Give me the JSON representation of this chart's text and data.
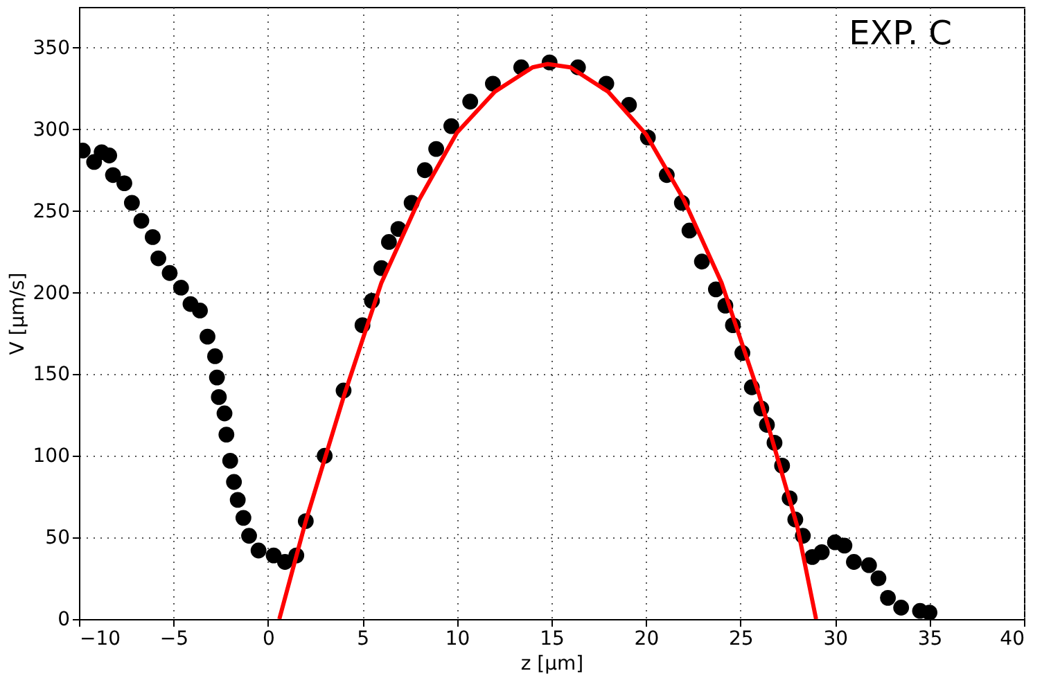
{
  "chart_data": {
    "type": "scatter",
    "xlabel": "z [μm]",
    "ylabel": "V [μm/s]",
    "annotations": [
      "EXP. C"
    ],
    "xlim": [
      -10,
      40
    ],
    "ylim": [
      0,
      375
    ],
    "xticks": [
      -10,
      -5,
      0,
      5,
      10,
      15,
      20,
      25,
      30,
      35,
      40
    ],
    "yticks": [
      0,
      50,
      100,
      150,
      200,
      250,
      300,
      350
    ],
    "grid": true,
    "series": [
      {
        "color": "#000000",
        "marker": "circle",
        "x": [
          -9.8,
          -9.2,
          -8.8,
          -8.4,
          -8.2,
          -7.6,
          -7.2,
          -6.7,
          -6.1,
          -5.8,
          -5.2,
          -4.6,
          -4.1,
          -3.6,
          -3.2,
          -2.8,
          -2.7,
          -2.6,
          -2.3,
          -2.2,
          -2.0,
          -1.8,
          -1.6,
          -1.3,
          -1.0,
          -0.5,
          0.3,
          0.9,
          1.5,
          2,
          3,
          4,
          5,
          5.5,
          6,
          6.4,
          6.9,
          7.6,
          8.3,
          8.9,
          9.7,
          10.7,
          11.9,
          13.4,
          14.9,
          16.4,
          17.9,
          19.1,
          20.1,
          21.1,
          21.9,
          22.3,
          22.96,
          23.7,
          24.2,
          24.6,
          25.1,
          25.6,
          26.1,
          26.4,
          26.8,
          27.2,
          27.6,
          27.9,
          28.3,
          28.8,
          29.3,
          30.0,
          30.5,
          31.0,
          31.8,
          32.3,
          32.8,
          33.5,
          34.5,
          35.0
        ],
        "values": [
          287,
          280,
          286,
          284,
          272,
          267,
          255,
          244,
          234,
          221,
          212,
          203,
          193,
          189,
          173,
          161,
          148,
          136,
          126,
          113,
          97,
          84,
          73,
          62,
          51,
          42,
          39,
          35,
          39,
          60,
          100,
          140,
          180,
          195,
          215,
          231,
          239,
          255,
          275,
          288,
          302,
          317,
          328,
          338,
          341,
          338,
          328,
          315,
          295,
          272,
          255,
          238,
          219,
          202,
          192,
          180,
          163,
          142,
          129,
          119,
          108,
          94,
          74,
          61,
          51,
          38,
          41,
          47,
          45,
          35,
          33,
          25,
          13,
          7,
          5,
          4
        ]
      },
      {
        "type": "line",
        "marker": "none",
        "color": "#ff0000",
        "x": [
          0.6,
          2,
          4,
          6,
          8,
          10,
          12,
          14,
          14.8,
          16,
          18,
          20,
          22,
          24,
          26,
          28,
          29.0
        ],
        "values": [
          0,
          60,
          136,
          206,
          257,
          298,
          323,
          338,
          340,
          338,
          323,
          297,
          257,
          206,
          137,
          57,
          0
        ]
      }
    ]
  }
}
